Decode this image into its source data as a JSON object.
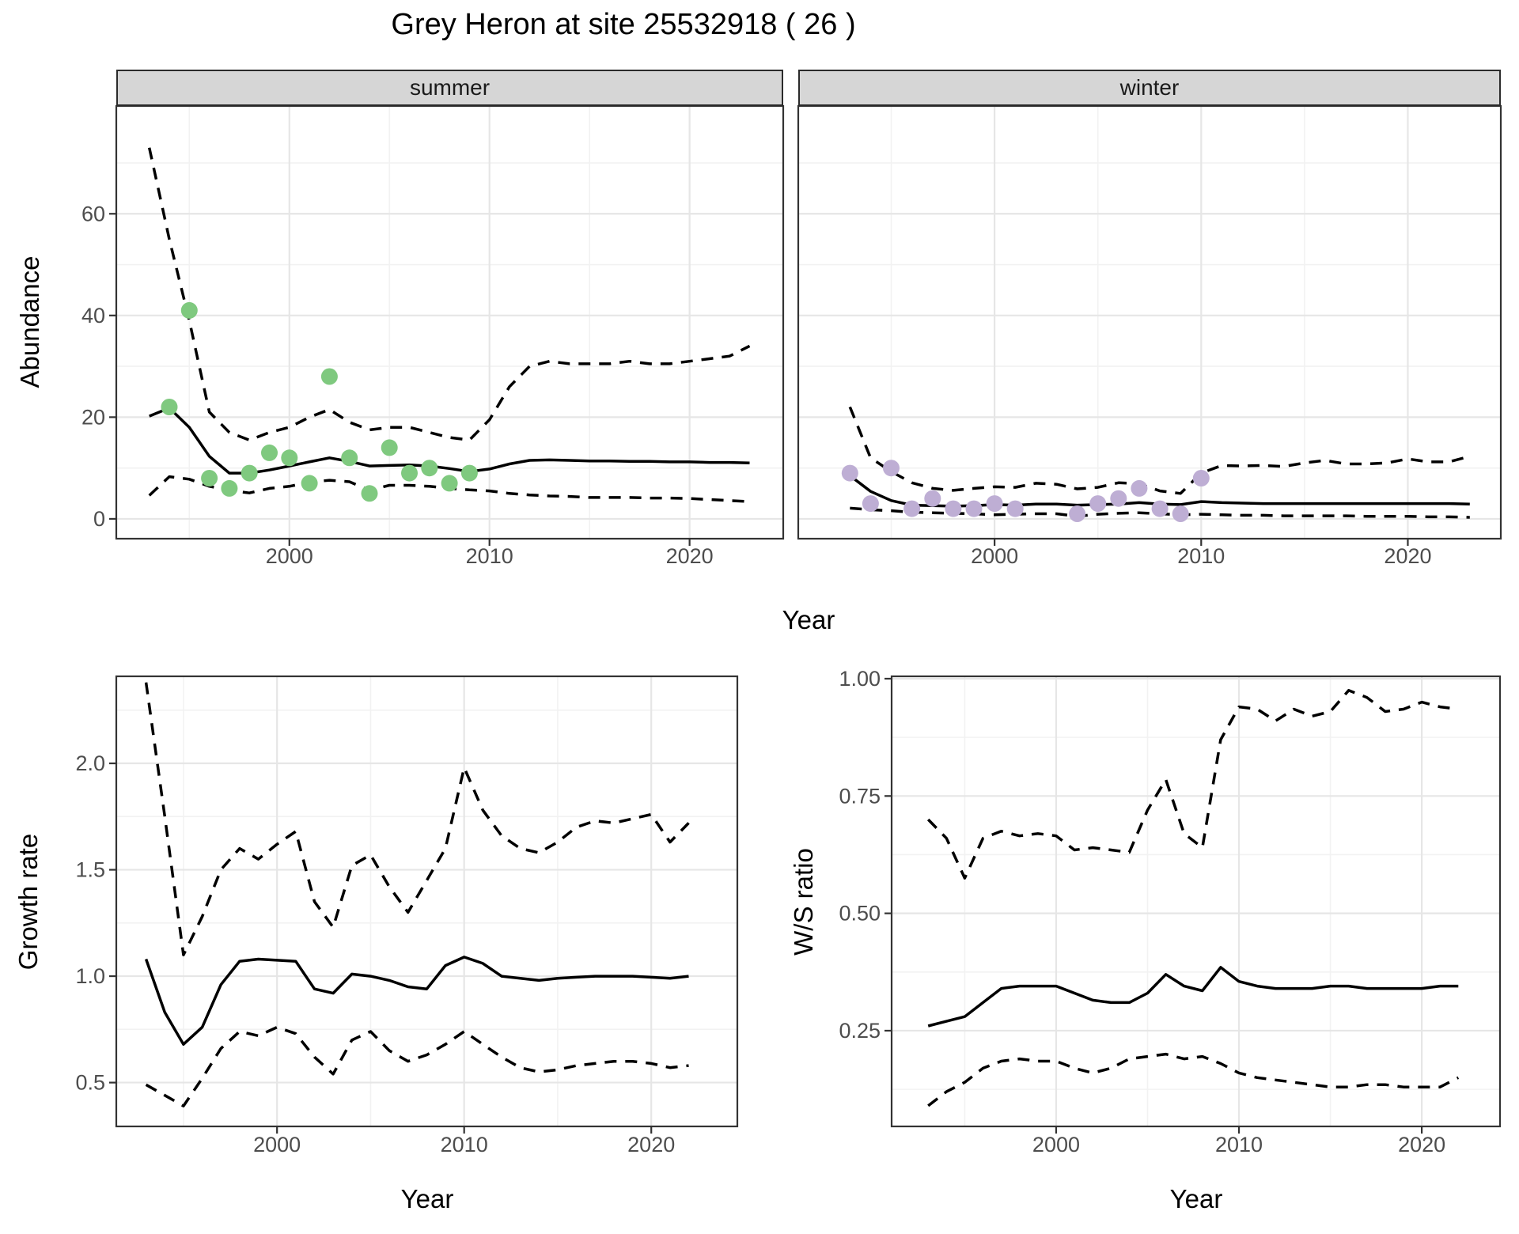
{
  "title": "Grey Heron at site 25532918 ( 26 )",
  "facets": {
    "summer": "summer",
    "winter": "winter"
  },
  "axes": {
    "abundance_label": "Abundance",
    "growth_label": "Growth rate",
    "ws_label": "W/S ratio",
    "year_label_top": "Year",
    "year_label_bottom_left": "Year",
    "year_label_bottom_right": "Year"
  },
  "colors": {
    "summer_points": "#7FC97F",
    "winter_points": "#BEAED4",
    "median_line": "#000000",
    "ci_line": "#000000",
    "grid_major": "#e6e6e6",
    "grid_minor": "#f2f2f2",
    "panel_border": "#333333",
    "tick_text": "#4d4d4d"
  },
  "chart_data": [
    {
      "id": "summer",
      "type": "line",
      "facet": "summer",
      "year_start": 1993,
      "year_end": 2023,
      "median": [
        20.2,
        21.8,
        18,
        12.3,
        9,
        9,
        9.6,
        10.4,
        11.2,
        12,
        11.3,
        10.4,
        10.5,
        10.6,
        10.4,
        9.9,
        9.3,
        9.8,
        10.8,
        11.5,
        11.6,
        11.5,
        11.4,
        11.4,
        11.3,
        11.3,
        11.2,
        11.2,
        11.1,
        11.1,
        11.0
      ],
      "upper": [
        73,
        55,
        39,
        21,
        17,
        15.5,
        17,
        18,
        20,
        21.5,
        19,
        17.5,
        18,
        18,
        17,
        16,
        15.5,
        19.5,
        26,
        30,
        31,
        30.5,
        30.5,
        30.5,
        31,
        30.5,
        30.5,
        31,
        31.5,
        32,
        34
      ],
      "lower": [
        4.6,
        8.3,
        7.8,
        6.4,
        5.6,
        5.1,
        6,
        6.4,
        7.2,
        7.6,
        7.3,
        5.6,
        6.6,
        6.6,
        6.4,
        6,
        5.7,
        5.5,
        5,
        4.7,
        4.5,
        4.4,
        4.2,
        4.2,
        4.2,
        4.1,
        4.1,
        4,
        3.8,
        3.6,
        3.4
      ],
      "obs_years": [
        1994,
        1995,
        1996,
        1997,
        1998,
        1999,
        2000,
        2001,
        2002,
        2003,
        2004,
        2005,
        2006,
        2007,
        2008,
        2009
      ],
      "obs_values": [
        22,
        41,
        8,
        6,
        9,
        13,
        12,
        7,
        28,
        12,
        5,
        14,
        9,
        10,
        7,
        9
      ],
      "point_color": "#7FC97F",
      "xlim": [
        1991.35,
        2024.68
      ],
      "ylim": [
        -3.9,
        81.2
      ],
      "x_ticks": [
        {
          "v": 2000,
          "label": "2000"
        },
        {
          "v": 2010,
          "label": "2010"
        },
        {
          "v": 2020,
          "label": "2020"
        }
      ],
      "x_minor": [
        1995,
        2005,
        2015
      ],
      "y_ticks": [
        {
          "v": 0,
          "label": "0"
        },
        {
          "v": 20,
          "label": "20"
        },
        {
          "v": 40,
          "label": "40"
        },
        {
          "v": 60,
          "label": "60"
        }
      ],
      "y_minor": [
        10,
        30,
        50,
        70
      ],
      "show_y_labels": true
    },
    {
      "id": "winter",
      "type": "line",
      "facet": "winter",
      "year_start": 1993,
      "year_end": 2023,
      "median": [
        8.5,
        5.4,
        3.6,
        2.7,
        2.6,
        2.5,
        2.6,
        2.8,
        2.7,
        2.9,
        2.9,
        2.7,
        2.8,
        2.9,
        3.2,
        2.9,
        2.8,
        3.4,
        3.2,
        3.1,
        3,
        3,
        3,
        3,
        3,
        3,
        3,
        3,
        3,
        3,
        2.9
      ],
      "upper": [
        22,
        12,
        9.3,
        7.1,
        6,
        5.6,
        6,
        6.3,
        6.2,
        7,
        6.8,
        5.9,
        6.2,
        7.1,
        6.9,
        5.5,
        5,
        9,
        10.5,
        10.4,
        10.5,
        10.3,
        11,
        11.5,
        10.8,
        10.8,
        11,
        11.8,
        11.2,
        11.2,
        12.3
      ],
      "lower": [
        2.1,
        1.8,
        1.6,
        1.3,
        1.2,
        1.1,
        1,
        0.8,
        0.9,
        1,
        1,
        0.5,
        0.9,
        1.1,
        1.2,
        1,
        0.8,
        0.9,
        0.8,
        0.7,
        0.7,
        0.6,
        0.6,
        0.6,
        0.6,
        0.5,
        0.5,
        0.5,
        0.4,
        0.4,
        0.3
      ],
      "obs_years": [
        1993,
        1994,
        1995,
        1996,
        1997,
        1998,
        1999,
        2000,
        2001,
        2004,
        2005,
        2006,
        2007,
        2008,
        2009,
        2010
      ],
      "obs_values": [
        9,
        3,
        10,
        2,
        4,
        2,
        2,
        3,
        2,
        1,
        3,
        4,
        6,
        2,
        1,
        8
      ],
      "point_color": "#BEAED4",
      "xlim": [
        1990.5,
        2024.5
      ],
      "ylim": [
        -3.9,
        81.2
      ],
      "x_ticks": [
        {
          "v": 2000,
          "label": "2000"
        },
        {
          "v": 2010,
          "label": "2010"
        },
        {
          "v": 2020,
          "label": "2020"
        }
      ],
      "x_minor": [
        1995,
        2005,
        2015
      ],
      "y_ticks": [
        {
          "v": 0,
          "label": "0"
        },
        {
          "v": 20,
          "label": "20"
        },
        {
          "v": 40,
          "label": "40"
        },
        {
          "v": 60,
          "label": "60"
        }
      ],
      "y_minor": [
        10,
        30,
        50,
        70
      ],
      "show_y_labels": false
    },
    {
      "id": "growth",
      "type": "line",
      "year_start": 1993,
      "year_end": 2022,
      "median": [
        1.08,
        0.83,
        0.68,
        0.76,
        0.96,
        1.07,
        1.08,
        1.075,
        1.07,
        0.94,
        0.92,
        1.01,
        1.0,
        0.98,
        0.95,
        0.94,
        1.05,
        1.09,
        1.06,
        1.0,
        0.99,
        0.98,
        0.99,
        0.995,
        1.0,
        1.0,
        1.0,
        0.995,
        0.99,
        1.0
      ],
      "upper": [
        2.38,
        1.75,
        1.1,
        1.28,
        1.5,
        1.6,
        1.55,
        1.62,
        1.68,
        1.35,
        1.23,
        1.52,
        1.57,
        1.42,
        1.3,
        1.45,
        1.6,
        1.98,
        1.78,
        1.66,
        1.6,
        1.58,
        1.63,
        1.7,
        1.73,
        1.72,
        1.74,
        1.76,
        1.63,
        1.72
      ],
      "lower": [
        0.49,
        0.44,
        0.39,
        0.52,
        0.66,
        0.74,
        0.72,
        0.76,
        0.73,
        0.62,
        0.54,
        0.7,
        0.74,
        0.65,
        0.6,
        0.63,
        0.68,
        0.74,
        0.68,
        0.62,
        0.57,
        0.55,
        0.56,
        0.58,
        0.59,
        0.6,
        0.6,
        0.59,
        0.57,
        0.58
      ],
      "obs_years": [],
      "obs_values": [],
      "point_color": "#000000",
      "xlim": [
        1991.41,
        2024.6
      ],
      "ylim": [
        0.294,
        2.409
      ],
      "x_ticks": [
        {
          "v": 2000,
          "label": "2000"
        },
        {
          "v": 2010,
          "label": "2010"
        },
        {
          "v": 2020,
          "label": "2020"
        }
      ],
      "x_minor": [
        1995,
        2005,
        2015
      ],
      "y_ticks": [
        {
          "v": 0.5,
          "label": "0.5"
        },
        {
          "v": 1.0,
          "label": "1.0"
        },
        {
          "v": 1.5,
          "label": "1.5"
        },
        {
          "v": 2.0,
          "label": "2.0"
        }
      ],
      "y_minor": [
        0.75,
        1.25,
        1.75,
        2.25
      ],
      "show_y_labels": true
    },
    {
      "id": "ws",
      "type": "line",
      "year_start": 1993,
      "year_end": 2022,
      "median": [
        0.26,
        0.27,
        0.28,
        0.31,
        0.34,
        0.345,
        0.345,
        0.345,
        0.33,
        0.315,
        0.31,
        0.31,
        0.33,
        0.37,
        0.345,
        0.335,
        0.385,
        0.355,
        0.345,
        0.34,
        0.34,
        0.34,
        0.345,
        0.345,
        0.34,
        0.34,
        0.34,
        0.34,
        0.345,
        0.345
      ],
      "upper": [
        0.7,
        0.66,
        0.575,
        0.66,
        0.675,
        0.665,
        0.67,
        0.665,
        0.635,
        0.64,
        0.635,
        0.63,
        0.72,
        0.785,
        0.67,
        0.64,
        0.87,
        0.94,
        0.935,
        0.91,
        0.935,
        0.92,
        0.93,
        0.975,
        0.96,
        0.93,
        0.935,
        0.95,
        0.94,
        0.935
      ],
      "lower": [
        0.09,
        0.12,
        0.14,
        0.17,
        0.185,
        0.19,
        0.185,
        0.185,
        0.17,
        0.16,
        0.17,
        0.19,
        0.195,
        0.2,
        0.19,
        0.195,
        0.18,
        0.16,
        0.15,
        0.145,
        0.14,
        0.135,
        0.13,
        0.13,
        0.135,
        0.135,
        0.13,
        0.13,
        0.13,
        0.15
      ],
      "obs_years": [],
      "obs_values": [],
      "point_color": "#000000",
      "xlim": [
        1991.0,
        2024.28
      ],
      "ylim": [
        0.046,
        1.005
      ],
      "x_ticks": [
        {
          "v": 2000,
          "label": "2000"
        },
        {
          "v": 2010,
          "label": "2010"
        },
        {
          "v": 2020,
          "label": "2020"
        }
      ],
      "x_minor": [
        1995,
        2005,
        2015
      ],
      "y_ticks": [
        {
          "v": 0.25,
          "label": "0.25"
        },
        {
          "v": 0.5,
          "label": "0.50"
        },
        {
          "v": 0.75,
          "label": "0.75"
        },
        {
          "v": 1.0,
          "label": "1.00"
        }
      ],
      "y_minor": [
        0.125,
        0.375,
        0.625,
        0.875
      ],
      "show_y_labels": true
    }
  ]
}
